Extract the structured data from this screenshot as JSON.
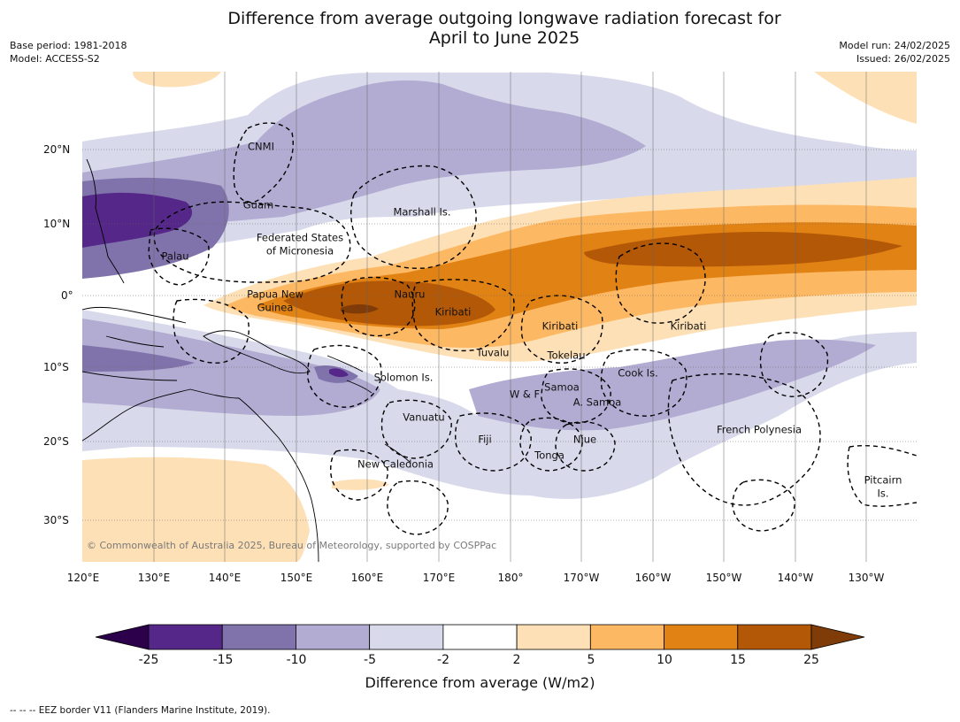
{
  "title_line1": "Difference from average outgoing longwave radiation forecast for",
  "title_line2": "April to June 2025",
  "meta_left": [
    "Base period: 1981-2018",
    "Model: ACCESS-S2"
  ],
  "meta_right": [
    "Model run: 24/02/2025",
    "Issued: 26/02/2025"
  ],
  "copyright": "© Commonwealth of Australia 2025, Bureau of Meteorology, supported by COSPPac",
  "lon_labels": [
    "120°E",
    "130°E",
    "140°E",
    "150°E",
    "160°E",
    "170°E",
    "180°",
    "170°W",
    "160°W",
    "150°W",
    "140°W",
    "130°W"
  ],
  "lat_labels": [
    "20°N",
    "10°N",
    "0°",
    "10°S",
    "20°S",
    "30°S"
  ],
  "places": [
    {
      "id": "cnmi",
      "text": "CNMI"
    },
    {
      "id": "guam",
      "text": "Guam"
    },
    {
      "id": "marshall",
      "text": "Marshall Is."
    },
    {
      "id": "fsm1",
      "text": "Federated States"
    },
    {
      "id": "fsm2",
      "text": "of Micronesia"
    },
    {
      "id": "palau",
      "text": "Palau"
    },
    {
      "id": "png1",
      "text": "Papua New"
    },
    {
      "id": "png2",
      "text": "Guinea"
    },
    {
      "id": "nauru",
      "text": "Nauru"
    },
    {
      "id": "kiribati1",
      "text": "Kiribati"
    },
    {
      "id": "kiribati2",
      "text": "Kiribati"
    },
    {
      "id": "kiribati3",
      "text": "Kiribati"
    },
    {
      "id": "tuvalu",
      "text": "Tuvalu"
    },
    {
      "id": "tokelau",
      "text": "Tokelau"
    },
    {
      "id": "solomon",
      "text": "Solomon Is."
    },
    {
      "id": "cook",
      "text": "Cook Is."
    },
    {
      "id": "samoa",
      "text": "Samoa"
    },
    {
      "id": "wf",
      "text": "W & F"
    },
    {
      "id": "asamoa",
      "text": "A. Samoa"
    },
    {
      "id": "vanuatu",
      "text": "Vanuatu"
    },
    {
      "id": "fiji",
      "text": "Fiji"
    },
    {
      "id": "niue",
      "text": "Niue"
    },
    {
      "id": "frpoly",
      "text": "French Polynesia"
    },
    {
      "id": "tonga",
      "text": "Tonga"
    },
    {
      "id": "newcal",
      "text": "New Caledonia"
    },
    {
      "id": "pitcairn1",
      "text": "Pitcairn"
    },
    {
      "id": "pitcairn2",
      "text": "Is."
    }
  ],
  "colorbar": {
    "ticks": [
      "-25",
      "-15",
      "-10",
      "-5",
      "-2",
      "2",
      "5",
      "10",
      "15",
      "25"
    ],
    "colors": [
      "#2d004b",
      "#542788",
      "#8073ac",
      "#b2abd2",
      "#d8daeb",
      "#ffffff",
      "#fee0b6",
      "#fdb863",
      "#e08214",
      "#b35806",
      "#7f3b08"
    ],
    "title": "Difference from average (W/m2)"
  },
  "footnote": "--  --  -- EEZ border V11 (Flanders Marine Institute, 2019)."
}
